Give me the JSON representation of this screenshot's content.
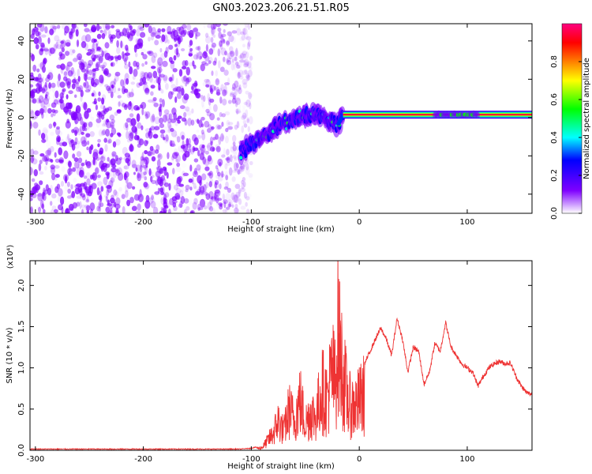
{
  "title": "GN03.2023.206.21.51.R05",
  "chart_data": [
    {
      "type": "heatmap",
      "xlabel": "Height of straight line (km)",
      "ylabel": "Frequency (Hz)",
      "xlim": [
        -305,
        160
      ],
      "ylim": [
        -50,
        49
      ],
      "x_ticks": [
        "-300",
        "-200",
        "-100",
        "0",
        "100"
      ],
      "y_ticks": [
        "-40",
        "-20",
        "0",
        "20",
        "40"
      ],
      "colorbar": {
        "label": "Normalized spectral amplitude",
        "range": [
          0.0,
          1.0
        ],
        "ticks": [
          "0.0",
          "0.2",
          "0.4",
          "0.6",
          "0.8"
        ],
        "colors": [
          "#ffffff",
          "#7f00ff",
          "#0000ff",
          "#00ffff",
          "#00ff00",
          "#ffff00",
          "#ff7f00",
          "#ff0000",
          "#ff0080"
        ]
      },
      "features": [
        {
          "description": "noise region",
          "x_range": [
            -305,
            -100
          ],
          "freq_range": [
            -50,
            49
          ],
          "amplitude": [
            0.0,
            0.25
          ]
        },
        {
          "description": "descending track",
          "points": [
            [
              -110,
              -18
            ],
            [
              -80,
              -6
            ],
            [
              -60,
              0
            ],
            [
              -40,
              2
            ],
            [
              -20,
              -4
            ],
            [
              -15,
              2
            ]
          ]
        },
        {
          "description": "steady tone",
          "x_range": [
            -15,
            160
          ],
          "frequency": 1.5,
          "amplitude": 0.95
        }
      ]
    },
    {
      "type": "line",
      "xlabel": "Height of straight line (km)",
      "ylabel": "SNR (10 * v/v)",
      "y_multiplier": "(x10⁴)",
      "xlim": [
        -305,
        160
      ],
      "ylim": [
        0,
        2.3
      ],
      "x_ticks": [
        "-300",
        "-200",
        "-100",
        "0",
        "100"
      ],
      "y_ticks": [
        "0.0",
        "0.5",
        "1.0",
        "1.5",
        "2.0"
      ],
      "color": "#ee3333",
      "series": [
        {
          "x": [
            -305,
            -200,
            -110,
            -100,
            -90,
            -80,
            -75,
            -70,
            -65,
            -60,
            -55,
            -50,
            -45,
            -40,
            -35,
            -30,
            -25,
            -22,
            -20,
            -18,
            -15,
            -10,
            -5,
            0,
            5,
            10,
            15,
            20,
            25,
            30,
            35,
            40,
            45,
            50,
            55,
            60,
            65,
            70,
            75,
            80,
            85,
            90,
            95,
            100,
            105,
            110,
            115,
            120,
            125,
            130,
            135,
            140,
            145,
            150,
            155,
            160
          ],
          "y": [
            0.01,
            0.01,
            0.01,
            0.02,
            0.05,
            0.3,
            0.55,
            0.35,
            0.75,
            0.55,
            0.95,
            0.5,
            0.7,
            0.6,
            1.15,
            0.95,
            1.45,
            1.2,
            2.3,
            1.85,
            1.4,
            0.85,
            0.8,
            0.9,
            1.05,
            1.2,
            1.35,
            1.48,
            1.35,
            1.15,
            1.6,
            1.35,
            0.95,
            1.25,
            1.2,
            0.8,
            0.95,
            1.3,
            1.2,
            1.55,
            1.25,
            1.15,
            1.05,
            1.0,
            0.95,
            0.78,
            0.9,
            1.0,
            1.05,
            1.08,
            1.05,
            1.06,
            0.9,
            0.78,
            0.7,
            0.68
          ]
        }
      ]
    }
  ]
}
